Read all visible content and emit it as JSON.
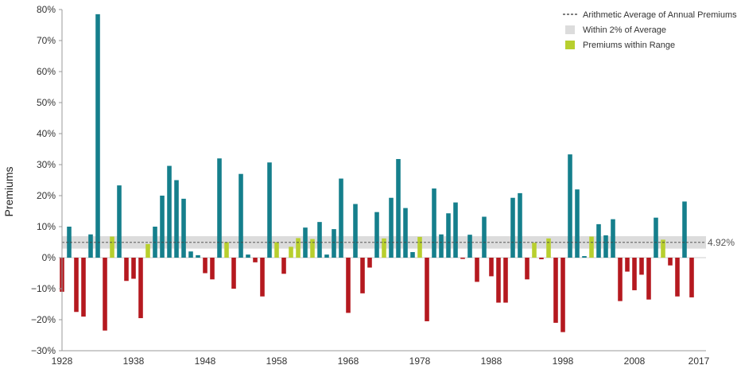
{
  "chart_data": {
    "type": "bar",
    "ylabel": "Premiums",
    "ylim": [
      -30,
      80
    ],
    "yticks": [
      "80%",
      "70%",
      "60%",
      "50%",
      "40%",
      "30%",
      "20%",
      "10%",
      "0%",
      "−10%",
      "−20%",
      "−30%"
    ],
    "ytick_values": [
      80,
      70,
      60,
      50,
      40,
      30,
      20,
      10,
      0,
      -10,
      -20,
      -30
    ],
    "xlim": [
      1928,
      2018
    ],
    "xticks": [
      "1928",
      "1938",
      "1948",
      "1958",
      "1968",
      "1978",
      "1988",
      "1998",
      "2008",
      "2017"
    ],
    "xtick_values": [
      1928,
      1938,
      1948,
      1958,
      1968,
      1978,
      1988,
      1998,
      2008,
      2017
    ],
    "average": 4.92,
    "average_label": "4.92%",
    "band": [
      2.92,
      6.92
    ],
    "legend": {
      "position": "top-right",
      "items": [
        {
          "label": "Arithmetic Average of Annual Premiums",
          "style": "dashed-line",
          "color": "#333333"
        },
        {
          "label": "Within 2% of Average",
          "style": "box",
          "color": "#dcdcdc"
        },
        {
          "label": "Premiums within Range",
          "style": "box",
          "color": "#b8cf2e"
        }
      ]
    },
    "colors": {
      "positive": "#157f8c",
      "negative": "#b5191f",
      "in_range": "#b8cf2e",
      "band": "#dcdcdc"
    },
    "years": [
      1928,
      1929,
      1930,
      1931,
      1932,
      1933,
      1934,
      1935,
      1936,
      1937,
      1938,
      1939,
      1940,
      1941,
      1942,
      1943,
      1944,
      1945,
      1946,
      1947,
      1948,
      1949,
      1950,
      1951,
      1952,
      1953,
      1954,
      1955,
      1956,
      1957,
      1958,
      1959,
      1960,
      1961,
      1962,
      1963,
      1964,
      1965,
      1966,
      1967,
      1968,
      1969,
      1970,
      1971,
      1972,
      1973,
      1974,
      1975,
      1976,
      1977,
      1978,
      1979,
      1980,
      1981,
      1982,
      1983,
      1984,
      1985,
      1986,
      1987,
      1988,
      1989,
      1990,
      1991,
      1992,
      1993,
      1994,
      1995,
      1996,
      1997,
      1998,
      1999,
      2000,
      2001,
      2002,
      2003,
      2004,
      2005,
      2006,
      2007,
      2008,
      2009,
      2010,
      2011,
      2012,
      2013,
      2014,
      2015,
      2016,
      2017
    ],
    "values": [
      -11.0,
      10.0,
      -17.5,
      -19.0,
      7.5,
      78.5,
      -23.5,
      6.8,
      23.3,
      -7.5,
      -6.8,
      -19.5,
      4.4,
      10.0,
      20.0,
      29.6,
      25.0,
      19.0,
      2.0,
      0.8,
      -5.0,
      -7.0,
      32.0,
      5.0,
      -10.0,
      27.0,
      1.0,
      -1.5,
      -12.5,
      30.7,
      5.0,
      -5.2,
      3.5,
      6.3,
      9.7,
      6.0,
      11.5,
      1.0,
      9.2,
      25.5,
      -17.8,
      17.3,
      -11.5,
      -3.2,
      14.7,
      6.2,
      19.3,
      31.8,
      16.0,
      1.8,
      6.7,
      -20.5,
      22.3,
      7.5,
      14.3,
      17.8,
      -0.4,
      7.4,
      -7.8,
      13.2,
      -6.0,
      -14.5,
      -14.5,
      19.3,
      20.8,
      -7.0,
      4.8,
      -0.5,
      6.2,
      -21.0,
      -24.0,
      33.3,
      22.0,
      0.5,
      6.8,
      10.8,
      7.2,
      12.4,
      -14.0,
      -4.5,
      -10.5,
      -5.5,
      -13.5,
      12.9,
      5.8,
      -2.5,
      -12.5,
      18.1,
      -12.8,
      null
    ]
  }
}
